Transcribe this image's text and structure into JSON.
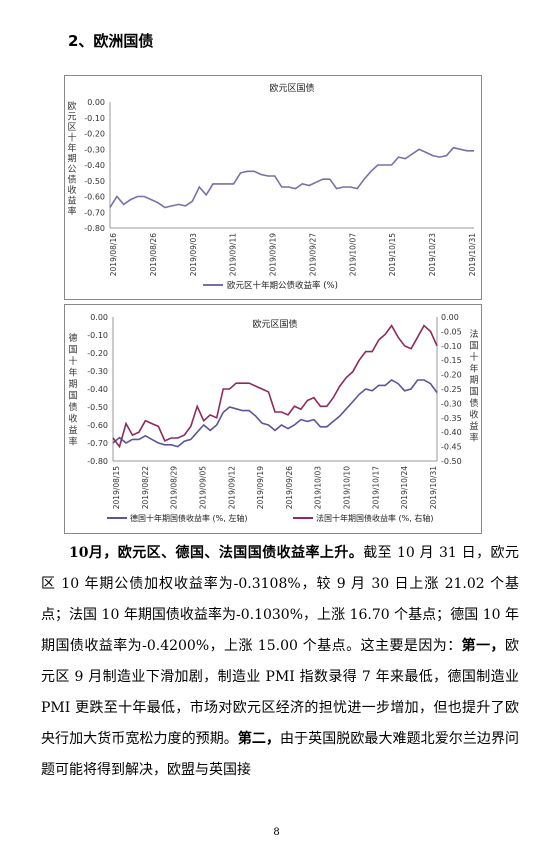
{
  "heading": "2、欧洲国债",
  "chart_data": [
    {
      "type": "line",
      "title": "欧元区国债",
      "ylabel": "欧元区十年期公债收益率",
      "ylim": [
        -0.8,
        0.0
      ],
      "yticks": [
        "0.00",
        "-0.10",
        "-0.20",
        "-0.30",
        "-0.40",
        "-0.50",
        "-0.60",
        "-0.70",
        "-0.80"
      ],
      "xticks": [
        "2019/08/16",
        "2019/08/26",
        "2019/09/03",
        "2019/09/11",
        "2019/09/19",
        "2019/09/27",
        "2019/10/07",
        "2019/10/15",
        "2019/10/23",
        "2019/10/31"
      ],
      "color": "#7670a8",
      "series": [
        {
          "name": "欧元区十年期公债收益率 (%)",
          "values": [
            -0.67,
            -0.6,
            -0.65,
            -0.62,
            -0.6,
            -0.6,
            -0.62,
            -0.64,
            -0.67,
            -0.66,
            -0.65,
            -0.66,
            -0.63,
            -0.54,
            -0.59,
            -0.52,
            -0.52,
            -0.52,
            -0.52,
            -0.45,
            -0.44,
            -0.44,
            -0.46,
            -0.47,
            -0.47,
            -0.54,
            -0.54,
            -0.55,
            -0.52,
            -0.53,
            -0.51,
            -0.49,
            -0.49,
            -0.55,
            -0.54,
            -0.54,
            -0.55,
            -0.49,
            -0.44,
            -0.4,
            -0.4,
            -0.4,
            -0.35,
            -0.36,
            -0.33,
            -0.3,
            -0.32,
            -0.34,
            -0.35,
            -0.34,
            -0.29,
            -0.3,
            -0.31,
            -0.31
          ]
        }
      ],
      "legend_position": "bottom"
    },
    {
      "type": "line",
      "title": "欧元区国债",
      "ylabel_left": "德国十年期国债收益率",
      "ylabel_right": "法国十年期国债收益率",
      "ylim_left": [
        -0.8,
        0.0
      ],
      "ylim_right": [
        -0.5,
        0.0
      ],
      "yticks_left": [
        "0.00",
        "-0.10",
        "-0.20",
        "-0.30",
        "-0.40",
        "-0.50",
        "-0.60",
        "-0.70",
        "-0.80"
      ],
      "yticks_right": [
        "0.00",
        "-0.05",
        "-0.10",
        "-0.15",
        "-0.20",
        "-0.25",
        "-0.30",
        "-0.35",
        "-0.40",
        "-0.45",
        "-0.50"
      ],
      "xticks": [
        "2019/08/15",
        "2019/08/22",
        "2019/08/29",
        "2019/09/05",
        "2019/09/12",
        "2019/09/19",
        "2019/09/26",
        "2019/10/03",
        "2019/10/10",
        "2019/10/17",
        "2019/10/24",
        "2019/10/31"
      ],
      "series": [
        {
          "name": "德国十年期国债收益率 (%, 左轴)",
          "axis": "left",
          "color": "#5c559c",
          "values": [
            -0.7,
            -0.67,
            -0.7,
            -0.68,
            -0.68,
            -0.66,
            -0.68,
            -0.7,
            -0.71,
            -0.71,
            -0.72,
            -0.69,
            -0.68,
            -0.64,
            -0.6,
            -0.63,
            -0.6,
            -0.53,
            -0.5,
            -0.51,
            -0.52,
            -0.52,
            -0.55,
            -0.59,
            -0.6,
            -0.63,
            -0.6,
            -0.62,
            -0.6,
            -0.57,
            -0.58,
            -0.57,
            -0.61,
            -0.61,
            -0.58,
            -0.55,
            -0.51,
            -0.47,
            -0.43,
            -0.4,
            -0.41,
            -0.38,
            -0.38,
            -0.35,
            -0.37,
            -0.41,
            -0.4,
            -0.35,
            -0.35,
            -0.37,
            -0.42
          ]
        },
        {
          "name": "法国十年期国债收益率 (%, 右轴)",
          "axis": "right",
          "color": "#8e2a5e",
          "values": [
            -0.42,
            -0.45,
            -0.37,
            -0.41,
            -0.4,
            -0.36,
            -0.37,
            -0.38,
            -0.43,
            -0.42,
            -0.42,
            -0.41,
            -0.38,
            -0.31,
            -0.36,
            -0.34,
            -0.35,
            -0.25,
            -0.25,
            -0.23,
            -0.23,
            -0.23,
            -0.24,
            -0.25,
            -0.26,
            -0.33,
            -0.33,
            -0.34,
            -0.31,
            -0.32,
            -0.29,
            -0.28,
            -0.31,
            -0.31,
            -0.28,
            -0.24,
            -0.21,
            -0.19,
            -0.15,
            -0.12,
            -0.12,
            -0.08,
            -0.06,
            -0.03,
            -0.07,
            -0.1,
            -0.11,
            -0.07,
            -0.03,
            -0.05,
            -0.1
          ]
        }
      ],
      "legend_position": "bottom"
    }
  ],
  "paragraph": {
    "r1": "10月，欧元区、德国、法国国债收益率上升。",
    "r2": "截至 10 月 31 日，欧元区 10 年期公债加权收益率为-0.3108%，较 9 月 30 日上涨 21.02 个基点；法国 10 年期国债收益率为-0.1030%，上涨 16.70 个基点；德国 10 年期国债收益率为-0.4200%，上涨 15.00 个基点。这主要是因为：",
    "r3": "第一，",
    "r4": "欧元区 9 月制造业下滑加剧，制造业 PMI 指数录得 7 年来最低，德国制造业 PMI 更跌至十年最低，市场对欧元区经济的担忧进一步增加，但也提升了欧央行加大货币宽松力度的预期。",
    "r5": "第二，",
    "r6": "由于英国脱欧最大难题北爱尔兰边界问题可能将得到解决，欧盟与英国接"
  },
  "page_number": "8"
}
